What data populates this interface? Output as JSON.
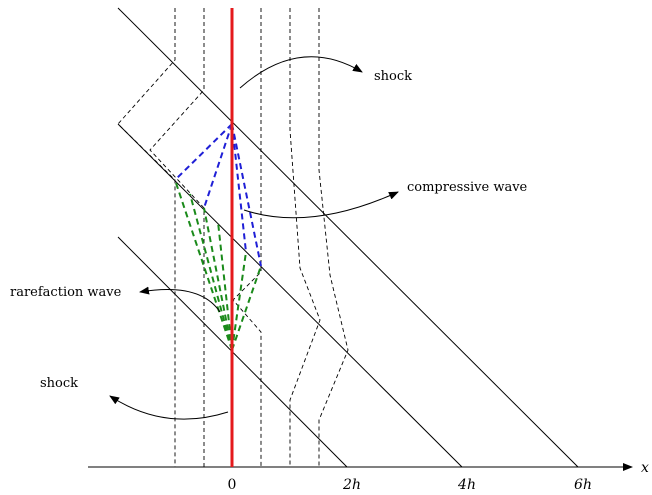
{
  "labels": {
    "shock_top": "shock",
    "compressive_wave": "compressive wave",
    "rarefaction_wave": "rarefaction wave",
    "shock_bottom": "shock"
  },
  "axis": {
    "ticks": [
      "0",
      "2h",
      "4h",
      "6h"
    ],
    "x_label": "x"
  },
  "colors": {
    "wall": "#e41a1c",
    "compressive": "#1f1fd6",
    "rarefaction": "#1a8a1a",
    "lines": "#000000"
  }
}
